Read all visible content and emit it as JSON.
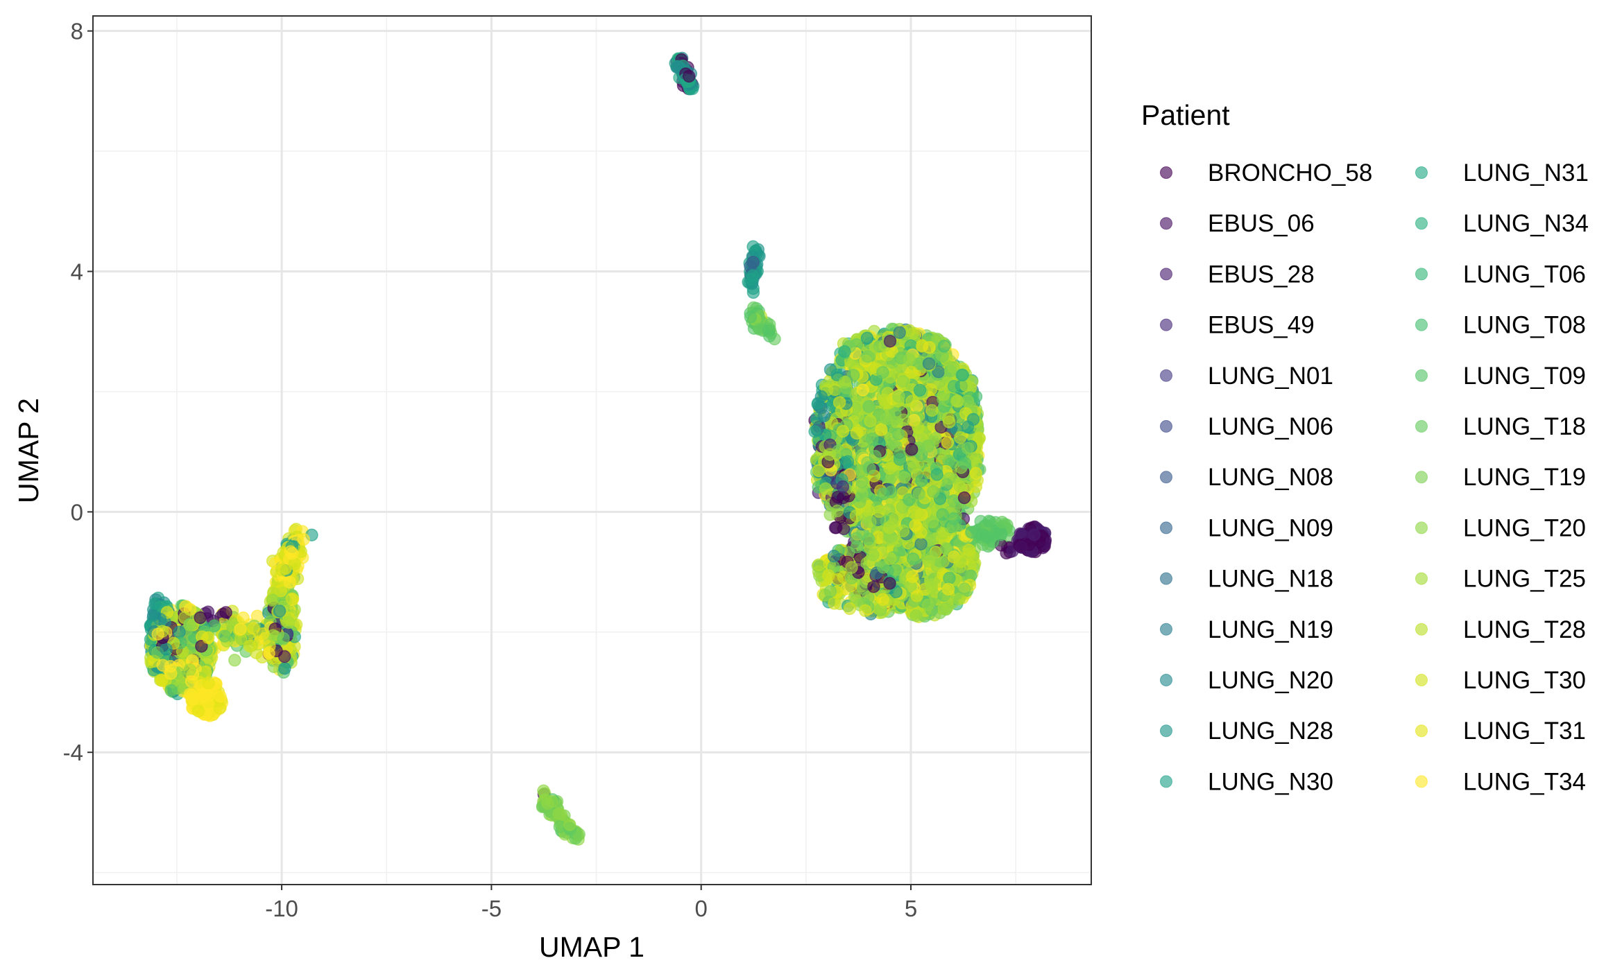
{
  "chart_data": {
    "type": "scatter",
    "title": "",
    "xlabel": "UMAP 1",
    "ylabel": "UMAP 2",
    "xlim": [
      -14.5,
      9.3
    ],
    "ylim": [
      -6.2,
      8.25
    ],
    "x_ticks": [
      -10,
      -5,
      0,
      5
    ],
    "x_tick_labels": [
      "-10",
      "-5",
      "0",
      "5"
    ],
    "y_ticks": [
      -4,
      0,
      4,
      8
    ],
    "y_tick_labels": [
      "-4",
      "0",
      "4",
      "8"
    ],
    "grid": true,
    "legend_position": "right",
    "legend": {
      "title": "Patient",
      "entries": [
        {
          "name": "BRONCHO_58",
          "color": "#440154"
        },
        {
          "name": "EBUS_06",
          "color": "#471063"
        },
        {
          "name": "EBUS_28",
          "color": "#481D6F"
        },
        {
          "name": "EBUS_49",
          "color": "#472A7A"
        },
        {
          "name": "LUNG_N01",
          "color": "#433C84"
        },
        {
          "name": "LUNG_N06",
          "color": "#3E4A89"
        },
        {
          "name": "LUNG_N08",
          "color": "#38588C"
        },
        {
          "name": "LUNG_N09",
          "color": "#32648E"
        },
        {
          "name": "LUNG_N18",
          "color": "#2D718E"
        },
        {
          "name": "LUNG_N19",
          "color": "#287D8E"
        },
        {
          "name": "LUNG_N20",
          "color": "#23898E"
        },
        {
          "name": "LUNG_N28",
          "color": "#1F958B"
        },
        {
          "name": "LUNG_N30",
          "color": "#1FA188"
        },
        {
          "name": "LUNG_N31",
          "color": "#22A884"
        },
        {
          "name": "LUNG_N34",
          "color": "#2AB07F"
        },
        {
          "name": "LUNG_T06",
          "color": "#35B779"
        },
        {
          "name": "LUNG_T08",
          "color": "#44BF70"
        },
        {
          "name": "LUNG_T09",
          "color": "#54C568"
        },
        {
          "name": "LUNG_T18",
          "color": "#66CB5D"
        },
        {
          "name": "LUNG_T19",
          "color": "#7AD151"
        },
        {
          "name": "LUNG_T20",
          "color": "#8FD744"
        },
        {
          "name": "LUNG_T25",
          "color": "#A5DB36"
        },
        {
          "name": "LUNG_T28",
          "color": "#BBDF27"
        },
        {
          "name": "LUNG_T30",
          "color": "#D2E21B"
        },
        {
          "name": "LUNG_T31",
          "color": "#E4E419"
        },
        {
          "name": "LUNG_T34",
          "color": "#FDE725"
        }
      ]
    },
    "clusters": [
      {
        "id": "left",
        "x": [
          -13.2,
          -9.6
        ],
        "y": [
          -3.5,
          -0.4
        ],
        "note": "left lobe with bridge to right lobe"
      },
      {
        "id": "top",
        "x": [
          -0.6,
          -0.2
        ],
        "y": [
          7.0,
          7.6
        ]
      },
      {
        "id": "mid-strand",
        "x": [
          1.0,
          1.7
        ],
        "y": [
          2.9,
          4.4
        ]
      },
      {
        "id": "main",
        "x": [
          2.3,
          8.2
        ],
        "y": [
          -1.8,
          3.1
        ]
      },
      {
        "id": "bottom-strand",
        "x": [
          -3.9,
          -2.9
        ],
        "y": [
          -5.5,
          -4.7
        ]
      }
    ]
  }
}
